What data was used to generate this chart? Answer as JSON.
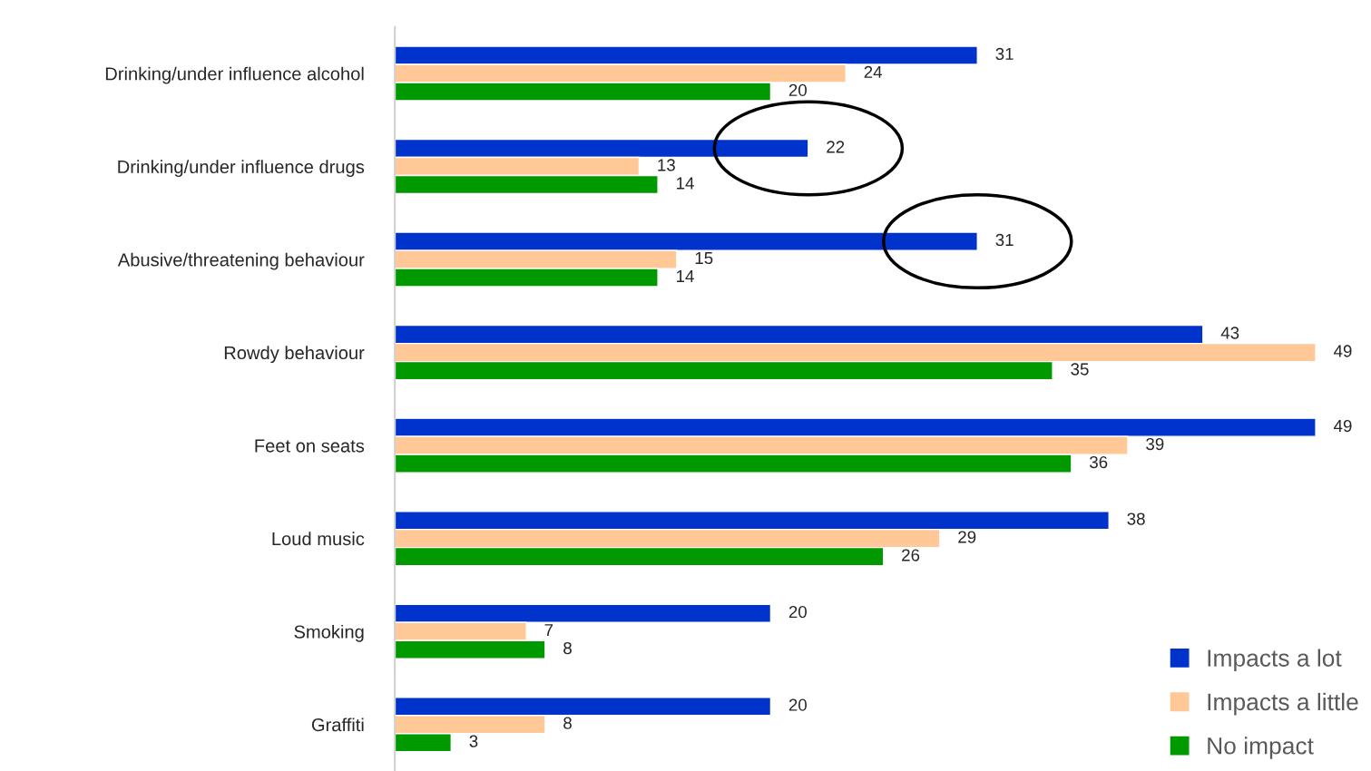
{
  "chart_data": {
    "type": "bar",
    "orientation": "horizontal",
    "data_labels": true,
    "legend": "bottom right",
    "grid": false,
    "categories": [
      "Drinking/under influence alcohol",
      "Drinking/under influence drugs",
      "Abusive/threatening behaviour",
      "Rowdy behaviour",
      "Feet on seats",
      "Loud music",
      "Smoking",
      "Graffiti"
    ],
    "series": [
      {
        "name": "Impacts a lot",
        "color": "#0033cc",
        "values": [
          31,
          22,
          31,
          43,
          49,
          38,
          20,
          20
        ]
      },
      {
        "name": "Impacts a little",
        "color": "#ffc896",
        "values": [
          24,
          13,
          15,
          49,
          39,
          29,
          7,
          8
        ]
      },
      {
        "name": "No impact",
        "color": "#009900",
        "values": [
          20,
          14,
          14,
          35,
          36,
          26,
          8,
          3
        ]
      }
    ]
  }
}
